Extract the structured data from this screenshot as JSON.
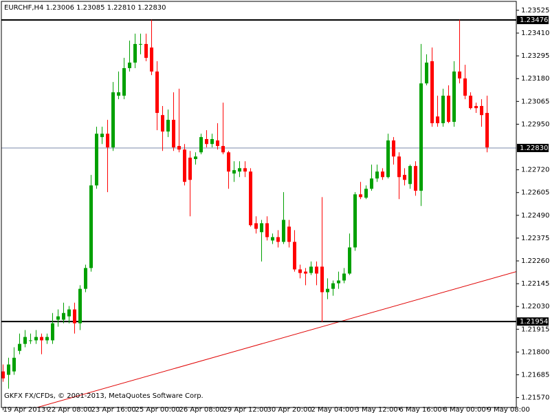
{
  "chart_data": {
    "type": "candlestick",
    "title": "EURCHF,H4  1.23006 1.23085 1.22810 1.22830",
    "footer": "GKFX FX/CFDs, © 2001-2013, MetaQuotes Software Corp.",
    "categories": [
      "19 Apr 2013",
      null,
      null,
      null,
      null,
      null,
      null,
      null,
      "22 Apr 08:00",
      null,
      null,
      null,
      null,
      null,
      null,
      null,
      "23 Apr 16:00",
      null,
      null,
      null,
      null,
      null,
      null,
      null,
      "25 Apr 00:00",
      null,
      null,
      null,
      null,
      null,
      null,
      null,
      "26 Apr 08:00",
      null,
      null,
      null,
      null,
      null,
      null,
      null,
      "29 Apr 12:00",
      null,
      null,
      null,
      null,
      null,
      null,
      null,
      "30 Apr 20:00",
      null,
      null,
      null,
      null,
      null,
      null,
      null,
      "2 May 04:00",
      null,
      null,
      null,
      null,
      null,
      null,
      null,
      "3 May 12:00",
      null,
      null,
      null,
      null,
      null,
      null,
      null,
      "6 May 16:00",
      null,
      null,
      null,
      null,
      null,
      null,
      null,
      "8 May 00:00",
      null,
      null,
      null,
      null,
      null,
      null,
      null,
      "9 May 08:00"
    ],
    "open": [
      1.21702,
      1.21685,
      1.21702,
      1.21806,
      1.21841,
      1.21859,
      1.21859,
      1.21876,
      1.21859,
      1.21859,
      1.21963,
      1.21963,
      1.2198,
      1.22015,
      1.21945,
      1.22119,
      1.22224,
      1.22641,
      1.22885,
      1.22902,
      1.22833,
      1.23094,
      1.23094,
      1.23233,
      1.23261,
      1.23355,
      1.23355,
      1.23337,
      1.23216,
      1.22996,
      1.22913,
      1.22972,
      1.2284,
      1.22822,
      1.22781,
      1.22774,
      1.22808,
      1.22875,
      1.2285,
      1.22868,
      1.2284,
      1.22808,
      1.22701,
      1.22711,
      1.22728,
      1.22711,
      1.2245,
      1.22405,
      1.2245,
      1.22363,
      1.2238,
      1.22356,
      1.22433,
      1.22356,
      1.22217,
      1.22206,
      1.22199,
      1.22231,
      1.22231,
      1.22102,
      1.22119,
      1.22147,
      1.22161,
      1.22196,
      1.22328,
      1.22596,
      1.22579,
      1.22624,
      1.22676,
      1.22711,
      1.22683,
      1.22868,
      1.22787,
      1.22694,
      1.22648,
      1.22739,
      1.22614,
      1.23156,
      1.23268,
      1.22989,
      1.22955,
      1.23094,
      1.22962,
      1.23216,
      1.23181,
      1.23094,
      1.23042,
      1.23042,
      1.23007
    ],
    "high": [
      1.21737,
      1.21771,
      1.21824,
      1.21893,
      1.21911,
      1.21893,
      1.21911,
      1.21893,
      1.21893,
      1.21997,
      1.22015,
      1.22049,
      1.22032,
      1.22049,
      1.22137,
      1.22241,
      1.22694,
      1.22937,
      1.22937,
      1.22972,
      1.23163,
      1.23216,
      1.23285,
      1.23372,
      1.23407,
      1.23407,
      1.23407,
      1.23477,
      1.23268,
      1.23042,
      1.23024,
      1.23111,
      1.23129,
      1.2285,
      1.22815,
      1.22808,
      1.22902,
      1.2292,
      1.22902,
      1.22955,
      1.23059,
      1.22815,
      1.22763,
      1.22763,
      1.22763,
      1.22728,
      1.22485,
      1.22467,
      1.22485,
      1.22398,
      1.22415,
      1.22607,
      1.22467,
      1.22415,
      1.22241,
      1.22224,
      1.22257,
      1.22257,
      1.22582,
      1.22172,
      1.22161,
      1.22206,
      1.22224,
      1.22398,
      1.22607,
      1.22659,
      1.22641,
      1.22746,
      1.22746,
      1.22728,
      1.22902,
      1.22885,
      1.22808,
      1.22728,
      1.22746,
      1.22763,
      1.23355,
      1.23303,
      1.23337,
      1.23094,
      1.23129,
      1.23146,
      1.23268,
      1.23477,
      1.2325,
      1.23111,
      1.23059,
      1.23076,
      1.23094
    ],
    "low": [
      1.2165,
      1.21615,
      1.21685,
      1.21789,
      1.21824,
      1.21841,
      1.21841,
      1.21789,
      1.21841,
      1.21841,
      1.21928,
      1.21945,
      1.21945,
      1.21893,
      1.21911,
      1.22102,
      1.22206,
      1.22624,
      1.2285,
      1.22607,
      1.22815,
      1.23076,
      1.23076,
      1.23216,
      1.23233,
      1.23303,
      1.23268,
      1.23198,
      1.2292,
      1.22815,
      1.22885,
      1.22815,
      1.22808,
      1.22641,
      1.22485,
      1.22746,
      1.22798,
      1.22833,
      1.22833,
      1.22822,
      1.22798,
      1.22624,
      1.22659,
      1.22683,
      1.22683,
      1.22433,
      1.22398,
      1.22257,
      1.22363,
      1.22345,
      1.22328,
      1.22345,
      1.22328,
      1.22206,
      1.22172,
      1.22137,
      1.22189,
      1.22137,
      1.21952,
      1.22067,
      1.22084,
      1.22119,
      1.22147,
      1.22189,
      1.22311,
      1.22572,
      1.22572,
      1.22614,
      1.22659,
      1.22669,
      1.22676,
      1.22746,
      1.22572,
      1.22641,
      1.22624,
      1.22589,
      1.22537,
      1.23146,
      1.22937,
      1.22937,
      1.22937,
      1.22955,
      1.22937,
      1.23156,
      1.23076,
      1.23024,
      1.23007,
      1.22937,
      1.22808
    ],
    "close": [
      1.21667,
      1.21737,
      1.21771,
      1.21841,
      1.21876,
      1.21859,
      1.21876,
      1.21859,
      1.21876,
      1.21945,
      1.2198,
      1.21997,
      1.22015,
      1.21945,
      1.22119,
      1.22224,
      1.22641,
      1.22902,
      1.22902,
      1.22833,
      1.23111,
      1.23111,
      1.23233,
      1.23261,
      1.23355,
      1.23355,
      1.23285,
      1.23216,
      1.23007,
      1.22913,
      1.22972,
      1.22833,
      1.22822,
      1.22659,
      1.22669,
      1.22787,
      1.22885,
      1.2285,
      1.22875,
      1.2284,
      1.22808,
      1.22711,
      1.22718,
      1.22728,
      1.22711,
      1.2244,
      1.22422,
      1.2245,
      1.2238,
      1.2238,
      1.22356,
      1.22467,
      1.22356,
      1.22217,
      1.22199,
      1.22196,
      1.22231,
      1.22196,
      1.22102,
      1.22119,
      1.22147,
      1.22161,
      1.22196,
      1.22328,
      1.22596,
      1.22582,
      1.22624,
      1.22676,
      1.22711,
      1.22683,
      1.22868,
      1.22787,
      1.22683,
      1.22669,
      1.22739,
      1.22614,
      1.23156,
      1.23261,
      1.22955,
      1.22955,
      1.23094,
      1.22962,
      1.23216,
      1.23181,
      1.23094,
      1.23031,
      1.23031,
      1.22996,
      1.22833
    ],
    "up_color": "#00a000",
    "down_color": "#ff0000",
    "ylim": [
      1.2152,
      1.2357
    ],
    "yticks": [
      1.23525,
      {
        "value": 1.2341,
        "label": "1.23410"
      },
      1.23295,
      {
        "value": 1.2318,
        "label": "1.23180"
      },
      1.23065,
      {
        "value": 1.2295,
        "label": "1.22950"
      },
      {
        "value": 1.2272,
        "label": "1.22720"
      },
      1.22605,
      {
        "value": 1.2249,
        "label": "1.22490"
      },
      1.22375,
      {
        "value": 1.2226,
        "label": "1.22260"
      },
      1.22145,
      {
        "value": 1.2203,
        "label": "1.22030"
      },
      1.21915,
      {
        "value": 1.218,
        "label": "1.21800"
      },
      1.21685,
      {
        "value": 1.2157,
        "label": "1.21570"
      }
    ],
    "hlines": [
      1.23476,
      1.21954
    ],
    "current_price": {
      "value": 1.2283,
      "label": "1.22830"
    },
    "trendline": [
      1.21469,
      1.22206
    ],
    "trendline_color": "#e00000"
  }
}
